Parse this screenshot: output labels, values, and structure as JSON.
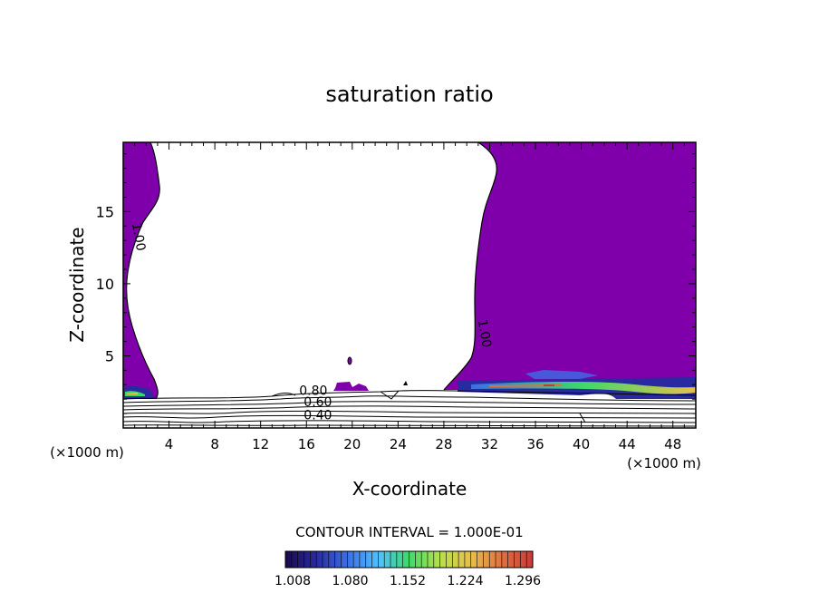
{
  "chart_data": {
    "type": "heatmap",
    "title": "saturation ratio",
    "xlabel": "X-coordinate",
    "ylabel": "Z-coordinate",
    "x_unit_left": "(×1000 m)",
    "x_unit_right": "(×1000 m)",
    "xlim": [
      0,
      50
    ],
    "ylim": [
      0,
      19.8
    ],
    "x_ticks": [
      4,
      8,
      12,
      16,
      20,
      24,
      28,
      32,
      36,
      40,
      44,
      48
    ],
    "y_ticks": [
      5,
      10,
      15
    ],
    "contour_interval_text": "CONTOUR INTERVAL = 1.000E-01",
    "colorbar": {
      "labels": [
        "1.008",
        "1.080",
        "1.152",
        "1.224",
        "1.296"
      ],
      "colors": [
        "#1a0a4a",
        "#2a2aa0",
        "#3c6ee6",
        "#4fc0ff",
        "#3fd96a",
        "#b8e04a",
        "#e6c04a",
        "#e07040",
        "#c83a3a"
      ]
    },
    "fill_color": "#7f00aa",
    "contour_labels": [
      {
        "text": "1.00",
        "x": 1.0,
        "y": 13.2,
        "rotate": 80
      },
      {
        "text": "1.00",
        "x": 31.2,
        "y": 6.5,
        "rotate": 80
      },
      {
        "text": "0.80",
        "x": 16.6,
        "y": 2.3,
        "rotate": 0
      },
      {
        "text": "0.60",
        "x": 17.0,
        "y": 1.5,
        "rotate": 0
      },
      {
        "text": "0.40",
        "x": 17.0,
        "y": 0.6,
        "rotate": 0
      }
    ]
  }
}
